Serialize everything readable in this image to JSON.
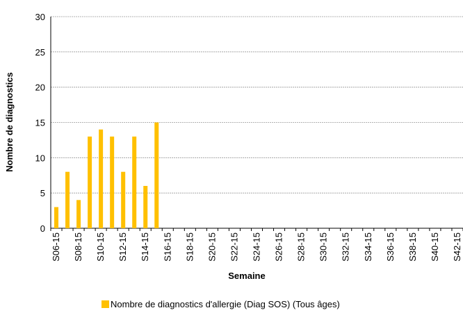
{
  "chart_data": {
    "type": "bar",
    "y_label": "Nombre de diagnostics",
    "x_label": "Semaine",
    "categories": [
      "S06-15",
      null,
      "S08-15",
      null,
      "S10-15",
      null,
      "S12-15",
      null,
      "S14-15",
      null,
      "S16-15",
      null,
      "S18-15",
      null,
      "S20-15",
      null,
      "S22-15",
      null,
      "S24-15",
      null,
      "S26-15",
      null,
      "S28-15",
      null,
      "S30-15",
      null,
      "S32-15",
      null,
      "S34-15",
      null,
      "S36-15",
      null,
      "S38-15",
      null,
      "S40-15",
      null,
      "S42-15"
    ],
    "series": [
      {
        "name": "Nombre de diagnostics d'allergie (Diag SOS) (Tous âges)",
        "color": "#ffc000",
        "values": [
          3,
          8,
          4,
          13,
          14,
          13,
          8,
          13,
          6,
          15,
          null,
          null,
          null,
          null,
          null,
          null,
          null,
          null,
          null,
          null,
          null,
          null,
          null,
          null,
          null,
          null,
          null,
          null,
          null,
          null,
          null,
          null,
          null,
          null,
          null,
          null,
          null
        ]
      }
    ],
    "ylim": [
      0,
      30
    ],
    "yticks": [
      0,
      5,
      10,
      15,
      20,
      25,
      30
    ],
    "grid": true
  }
}
